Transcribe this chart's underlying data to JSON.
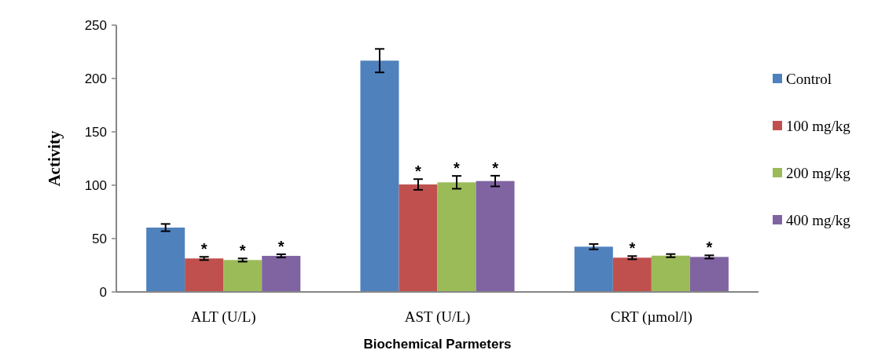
{
  "chart_data": {
    "type": "bar",
    "xlabel": "Biochemical Parmeters",
    "ylabel": "Activity",
    "categories": [
      "ALT (U/L)",
      "AST (U/L)",
      "CRT (µmol/l)"
    ],
    "series": [
      {
        "name": "Control",
        "color": "#4f81bd",
        "values": [
          60.3,
          216.7,
          42.4
        ],
        "errors": [
          3.4,
          11,
          2.5
        ]
      },
      {
        "name": "100 mg/kg",
        "color": "#c0504d",
        "values": [
          31.4,
          100.7,
          32.1
        ],
        "errors": [
          1.5,
          5,
          1.5
        ],
        "value_labels": [
          "*",
          "*",
          "*"
        ]
      },
      {
        "name": "200 mg/kg",
        "color": "#9bbb59",
        "values": [
          29.9,
          102.7,
          34
        ],
        "errors": [
          1.5,
          6,
          1.5
        ],
        "value_labels": [
          "*",
          "*",
          null
        ]
      },
      {
        "name": "400 mg/kg",
        "color": "#8064a2",
        "values": [
          33.8,
          103.9,
          32.8
        ],
        "errors": [
          1.5,
          5,
          1.5
        ],
        "value_labels": [
          "*",
          "*",
          "*"
        ]
      }
    ],
    "ylim": [
      0,
      250
    ],
    "yticks": [
      0,
      50,
      100,
      150,
      200,
      250
    ],
    "legend": "right"
  }
}
